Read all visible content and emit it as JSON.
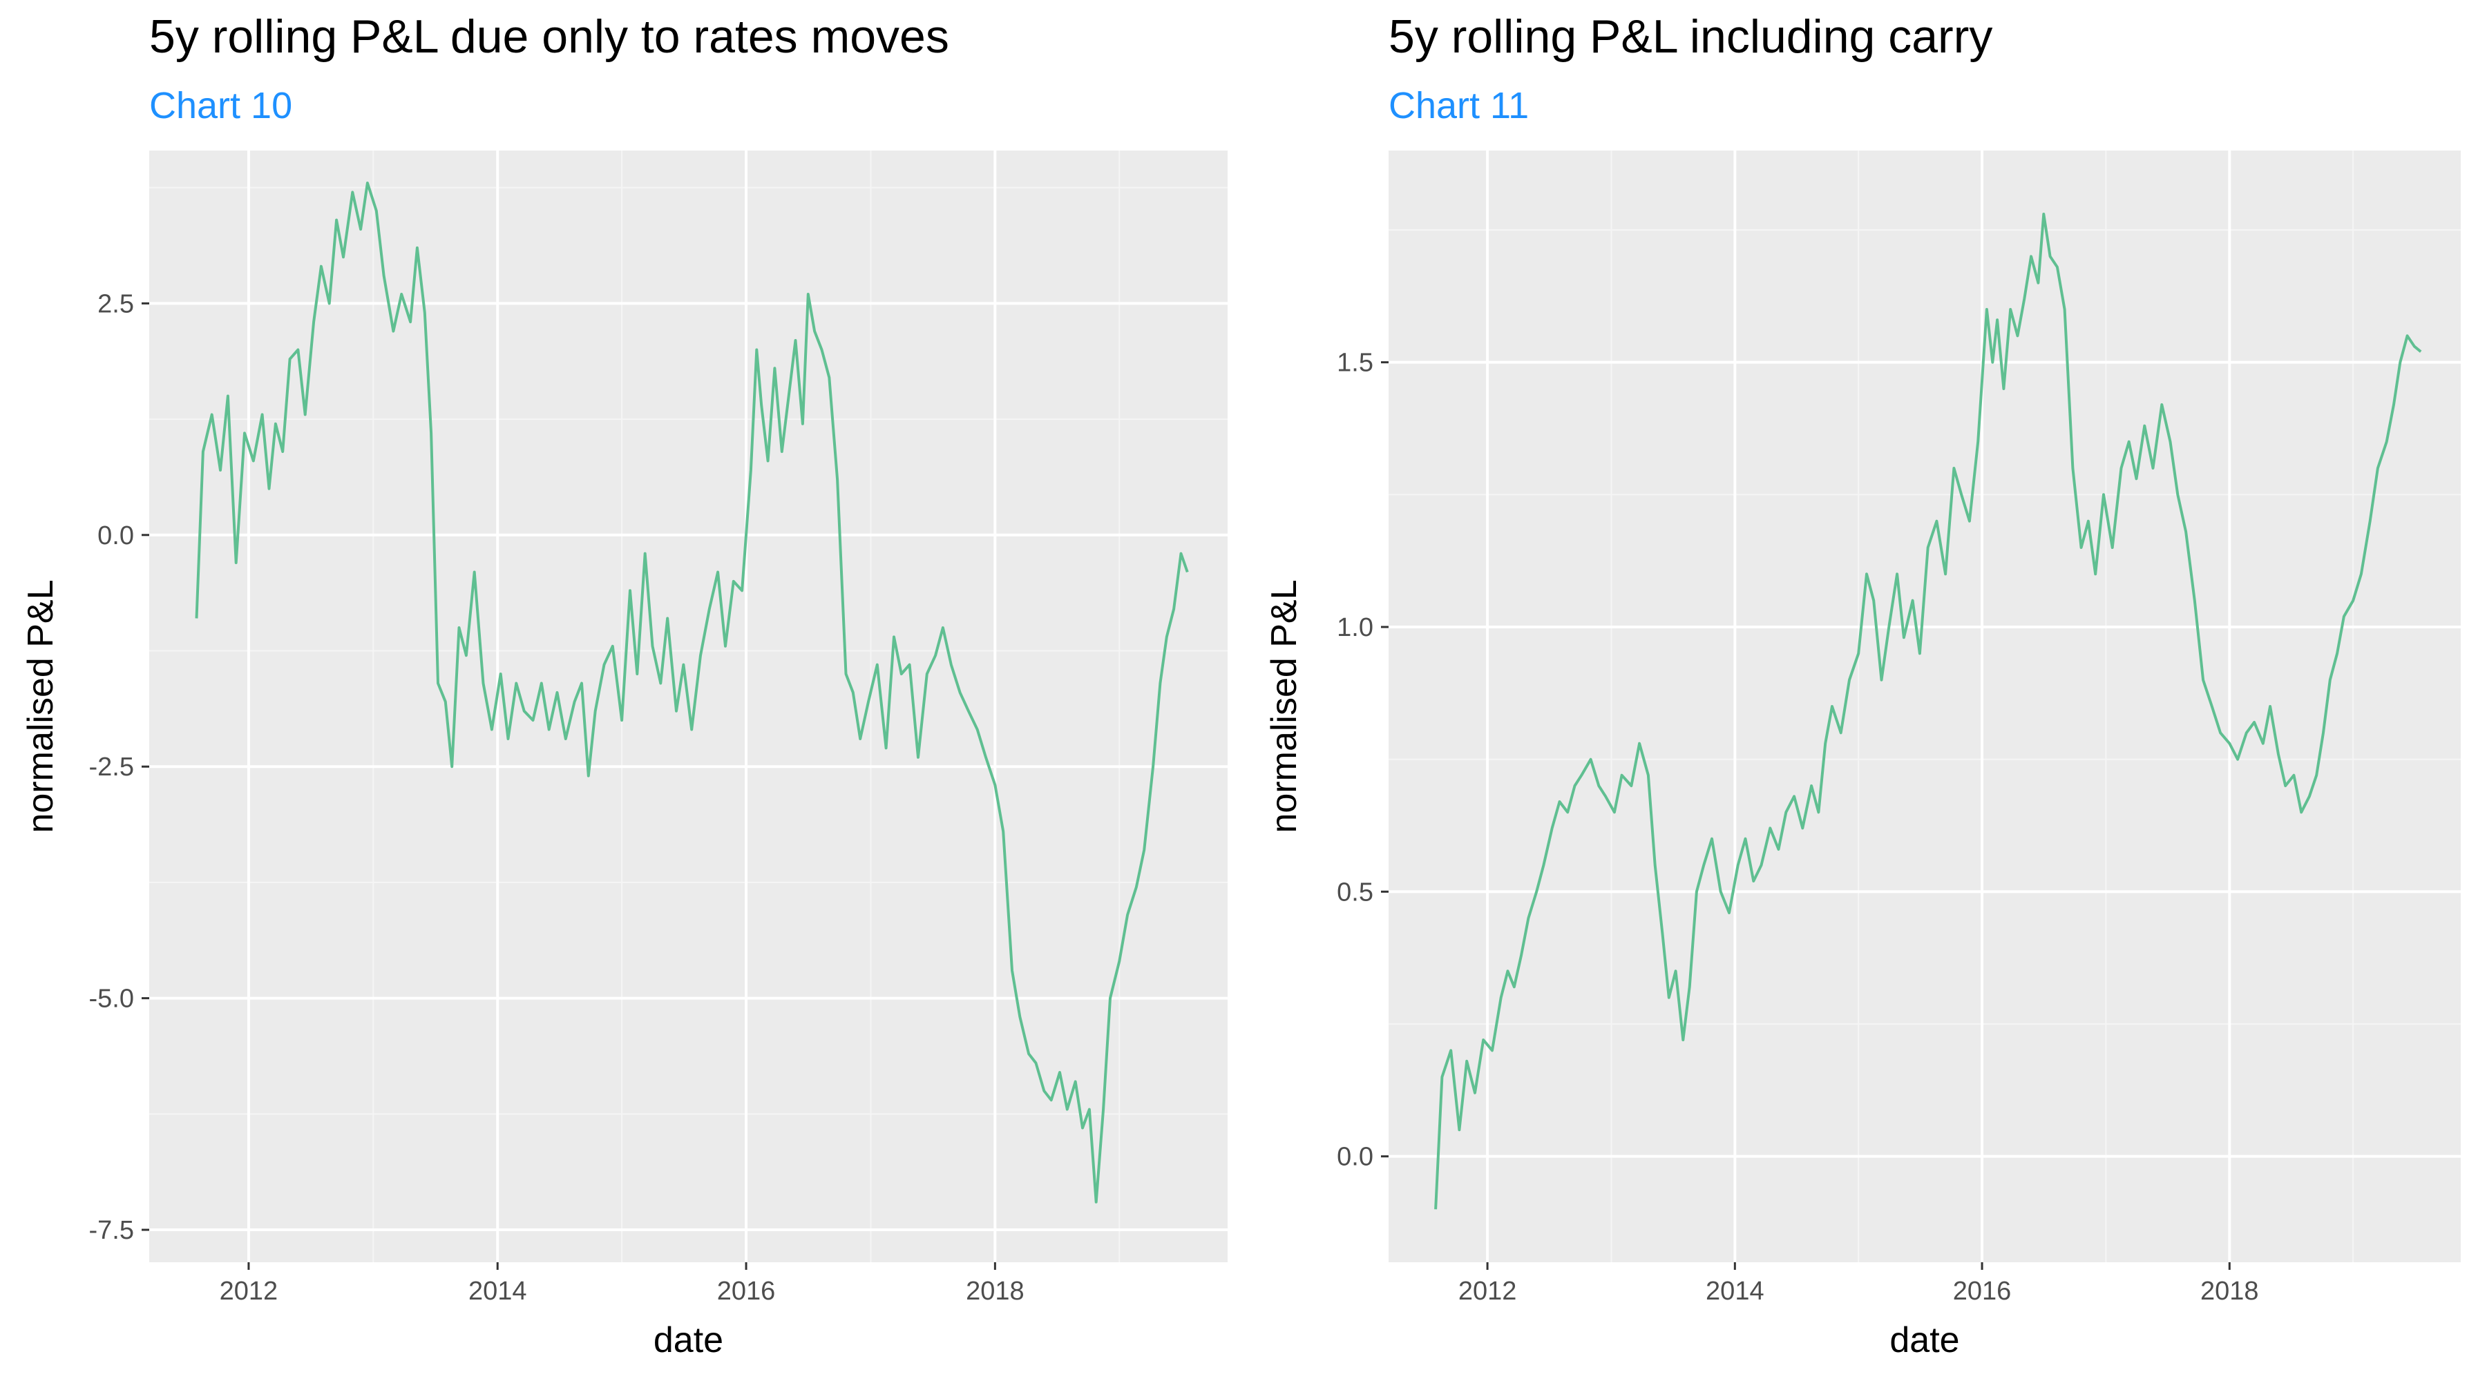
{
  "colors": {
    "panel": "#ebebeb",
    "grid_major": "#ffffff",
    "grid_minor": "#f5f5f5",
    "line": "#5fbf91",
    "subtitle": "#1e90ff",
    "tick_text": "#4d4d4d"
  },
  "chart_data": [
    {
      "type": "line",
      "title": "5y rolling P&L due only to rates moves",
      "subtitle": "Chart 10",
      "xlabel": "date",
      "ylabel": "normalised P&L",
      "x_ticks": [
        "2012",
        "2014",
        "2016",
        "2018"
      ],
      "y_ticks": [
        "2.5",
        "0.0",
        "-2.5",
        "-5.0",
        "-7.5"
      ],
      "xlim": [
        "2011-03-15",
        "2019-11-15"
      ],
      "ylim": [
        -7.85,
        4.15
      ],
      "grid": true,
      "series": [
        {
          "x": [
            "2011-08-01",
            "2011-08-20",
            "2011-09-15",
            "2011-10-10",
            "2011-11-01",
            "2011-11-25",
            "2011-12-20",
            "2012-01-15",
            "2012-02-10",
            "2012-03-01",
            "2012-03-20",
            "2012-04-10",
            "2012-05-01",
            "2012-05-25",
            "2012-06-15",
            "2012-07-10",
            "2012-08-01",
            "2012-08-25",
            "2012-09-15",
            "2012-10-05",
            "2012-11-01",
            "2012-11-25",
            "2012-12-15",
            "2013-01-10",
            "2013-02-01",
            "2013-03-01",
            "2013-03-25",
            "2013-04-20",
            "2013-05-10",
            "2013-06-01",
            "2013-06-20",
            "2013-07-10",
            "2013-08-01",
            "2013-08-20",
            "2013-09-10",
            "2013-10-01",
            "2013-10-25",
            "2013-11-20",
            "2013-12-15",
            "2014-01-10",
            "2014-02-01",
            "2014-02-25",
            "2014-03-20",
            "2014-04-15",
            "2014-05-10",
            "2014-06-01",
            "2014-06-25",
            "2014-07-20",
            "2014-08-15",
            "2014-09-05",
            "2014-09-25",
            "2014-10-15",
            "2014-11-10",
            "2014-12-05",
            "2015-01-01",
            "2015-01-25",
            "2015-02-15",
            "2015-03-10",
            "2015-04-01",
            "2015-04-25",
            "2015-05-15",
            "2015-06-10",
            "2015-07-01",
            "2015-07-25",
            "2015-08-20",
            "2015-09-15",
            "2015-10-10",
            "2015-11-01",
            "2015-11-25",
            "2015-12-20",
            "2016-01-15",
            "2016-02-01",
            "2016-02-15",
            "2016-03-05",
            "2016-03-25",
            "2016-04-15",
            "2016-05-05",
            "2016-05-25",
            "2016-06-15",
            "2016-07-01",
            "2016-07-20",
            "2016-08-10",
            "2016-09-01",
            "2016-09-25",
            "2016-10-20",
            "2016-11-10",
            "2016-12-01",
            "2016-12-25",
            "2017-01-20",
            "2017-02-15",
            "2017-03-10",
            "2017-04-01",
            "2017-04-25",
            "2017-05-20",
            "2017-06-15",
            "2017-07-10",
            "2017-08-01",
            "2017-08-25",
            "2017-09-20",
            "2017-10-15",
            "2017-11-10",
            "2017-12-05",
            "2018-01-01",
            "2018-01-25",
            "2018-02-20",
            "2018-03-15",
            "2018-04-10",
            "2018-05-01",
            "2018-05-25",
            "2018-06-15",
            "2018-07-10",
            "2018-08-01",
            "2018-08-25",
            "2018-09-15",
            "2018-10-05",
            "2018-10-25",
            "2018-11-15",
            "2018-12-05",
            "2019-01-01",
            "2019-01-25",
            "2019-02-20",
            "2019-03-15",
            "2019-04-10",
            "2019-05-01",
            "2019-05-20",
            "2019-06-10",
            "2019-07-01",
            "2019-07-20"
          ],
          "y": [
            -0.9,
            0.9,
            1.3,
            0.7,
            1.5,
            -0.3,
            1.1,
            0.8,
            1.3,
            0.5,
            1.2,
            0.9,
            1.9,
            2.0,
            1.3,
            2.3,
            2.9,
            2.5,
            3.4,
            3.0,
            3.7,
            3.3,
            3.8,
            3.5,
            2.8,
            2.2,
            2.6,
            2.3,
            3.1,
            2.4,
            1.1,
            -1.6,
            -1.8,
            -2.5,
            -1.0,
            -1.3,
            -0.4,
            -1.6,
            -2.1,
            -1.5,
            -2.2,
            -1.6,
            -1.9,
            -2.0,
            -1.6,
            -2.1,
            -1.7,
            -2.2,
            -1.8,
            -1.6,
            -2.6,
            -1.9,
            -1.4,
            -1.2,
            -2.0,
            -0.6,
            -1.5,
            -0.2,
            -1.2,
            -1.6,
            -0.9,
            -1.9,
            -1.4,
            -2.1,
            -1.3,
            -0.8,
            -0.4,
            -1.2,
            -0.5,
            -0.6,
            0.7,
            2.0,
            1.4,
            0.8,
            1.8,
            0.9,
            1.5,
            2.1,
            1.2,
            2.6,
            2.2,
            2.0,
            1.7,
            0.6,
            -1.5,
            -1.7,
            -2.2,
            -1.8,
            -1.4,
            -2.3,
            -1.1,
            -1.5,
            -1.4,
            -2.4,
            -1.5,
            -1.3,
            -1.0,
            -1.4,
            -1.7,
            -1.9,
            -2.1,
            -2.4,
            -2.7,
            -3.2,
            -4.7,
            -5.2,
            -5.6,
            -5.7,
            -6.0,
            -6.1,
            -5.8,
            -6.2,
            -5.9,
            -6.4,
            -6.2,
            -7.2,
            -6.2,
            -5.0,
            -4.6,
            -4.1,
            -3.8,
            -3.4,
            -2.5,
            -1.6,
            -1.1,
            -0.8,
            -0.2,
            -0.4
          ]
        }
      ]
    },
    {
      "type": "line",
      "title": "5y rolling P&L including carry",
      "subtitle": "Chart 11",
      "xlabel": "date",
      "ylabel": "normalised P&L",
      "x_ticks": [
        "2012",
        "2014",
        "2016",
        "2018"
      ],
      "y_ticks": [
        "1.5",
        "1.0",
        "0.5",
        "0.0"
      ],
      "xlim": [
        "2011-03-15",
        "2019-11-15"
      ],
      "ylim": [
        -0.2,
        1.9
      ],
      "grid": true,
      "series": [
        {
          "x": [
            "2011-08-01",
            "2011-08-20",
            "2011-09-15",
            "2011-10-10",
            "2011-11-01",
            "2011-11-25",
            "2011-12-20",
            "2012-01-15",
            "2012-02-10",
            "2012-03-01",
            "2012-03-20",
            "2012-04-10",
            "2012-05-01",
            "2012-05-25",
            "2012-06-15",
            "2012-07-10",
            "2012-08-01",
            "2012-08-25",
            "2012-09-15",
            "2012-10-05",
            "2012-11-01",
            "2012-11-25",
            "2012-12-15",
            "2013-01-10",
            "2013-02-01",
            "2013-03-01",
            "2013-03-25",
            "2013-04-20",
            "2013-05-10",
            "2013-06-01",
            "2013-06-20",
            "2013-07-10",
            "2013-08-01",
            "2013-08-20",
            "2013-09-10",
            "2013-10-01",
            "2013-10-25",
            "2013-11-20",
            "2013-12-15",
            "2014-01-10",
            "2014-02-01",
            "2014-02-25",
            "2014-03-20",
            "2014-04-15",
            "2014-05-10",
            "2014-06-01",
            "2014-06-25",
            "2014-07-20",
            "2014-08-15",
            "2014-09-05",
            "2014-09-25",
            "2014-10-15",
            "2014-11-10",
            "2014-12-05",
            "2015-01-01",
            "2015-01-25",
            "2015-02-15",
            "2015-03-10",
            "2015-04-01",
            "2015-04-25",
            "2015-05-15",
            "2015-06-10",
            "2015-07-01",
            "2015-07-25",
            "2015-08-20",
            "2015-09-15",
            "2015-10-10",
            "2015-11-01",
            "2015-11-25",
            "2015-12-20",
            "2016-01-15",
            "2016-02-01",
            "2016-02-15",
            "2016-03-05",
            "2016-03-25",
            "2016-04-15",
            "2016-05-05",
            "2016-05-25",
            "2016-06-15",
            "2016-07-01",
            "2016-07-20",
            "2016-08-10",
            "2016-09-01",
            "2016-09-25",
            "2016-10-20",
            "2016-11-10",
            "2016-12-01",
            "2016-12-25",
            "2017-01-20",
            "2017-02-15",
            "2017-03-10",
            "2017-04-01",
            "2017-04-25",
            "2017-05-20",
            "2017-06-15",
            "2017-07-10",
            "2017-08-01",
            "2017-08-25",
            "2017-09-20",
            "2017-10-15",
            "2017-11-10",
            "2017-12-05",
            "2018-01-01",
            "2018-01-25",
            "2018-02-20",
            "2018-03-15",
            "2018-04-10",
            "2018-05-01",
            "2018-05-25",
            "2018-06-15",
            "2018-07-10",
            "2018-08-01",
            "2018-08-25",
            "2018-09-15",
            "2018-10-05",
            "2018-10-25",
            "2018-11-15",
            "2018-12-05",
            "2019-01-01",
            "2019-01-25",
            "2019-02-20",
            "2019-03-15",
            "2019-04-10",
            "2019-05-01",
            "2019-05-20",
            "2019-06-10",
            "2019-07-01",
            "2019-07-20"
          ],
          "y": [
            -0.1,
            0.15,
            0.2,
            0.05,
            0.18,
            0.12,
            0.22,
            0.2,
            0.3,
            0.35,
            0.32,
            0.38,
            0.45,
            0.5,
            0.55,
            0.62,
            0.67,
            0.65,
            0.7,
            0.72,
            0.75,
            0.7,
            0.68,
            0.65,
            0.72,
            0.7,
            0.78,
            0.72,
            0.55,
            0.42,
            0.3,
            0.35,
            0.22,
            0.32,
            0.5,
            0.55,
            0.6,
            0.5,
            0.46,
            0.55,
            0.6,
            0.52,
            0.55,
            0.62,
            0.58,
            0.65,
            0.68,
            0.62,
            0.7,
            0.65,
            0.78,
            0.85,
            0.8,
            0.9,
            0.95,
            1.1,
            1.05,
            0.9,
            1.0,
            1.1,
            0.98,
            1.05,
            0.95,
            1.15,
            1.2,
            1.1,
            1.3,
            1.25,
            1.2,
            1.35,
            1.6,
            1.5,
            1.58,
            1.45,
            1.6,
            1.55,
            1.62,
            1.7,
            1.65,
            1.78,
            1.7,
            1.68,
            1.6,
            1.3,
            1.15,
            1.2,
            1.1,
            1.25,
            1.15,
            1.3,
            1.35,
            1.28,
            1.38,
            1.3,
            1.42,
            1.35,
            1.25,
            1.18,
            1.05,
            0.9,
            0.85,
            0.8,
            0.78,
            0.75,
            0.8,
            0.82,
            0.78,
            0.85,
            0.76,
            0.7,
            0.72,
            0.65,
            0.68,
            0.72,
            0.8,
            0.9,
            0.95,
            1.02,
            1.05,
            1.1,
            1.2,
            1.3,
            1.35,
            1.42,
            1.5,
            1.55,
            1.53,
            1.52
          ]
        }
      ]
    }
  ]
}
